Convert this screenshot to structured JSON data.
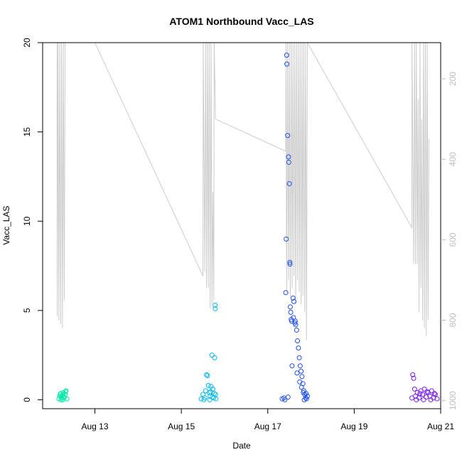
{
  "chart_data": {
    "type": "scatter",
    "title": "ATOM1 Northbound Vacc_LAS",
    "xlabel": "Date",
    "ylabel": "Vacc_LAS",
    "xlim": [
      "2019-08-11T19:00",
      "2019-08-21T00:00"
    ],
    "ylim": [
      -0.5,
      20
    ],
    "x_ticks": [
      {
        "label": "Aug 13",
        "date": "2019-08-13T00:00"
      },
      {
        "label": "Aug 15",
        "date": "2019-08-15T00:00"
      },
      {
        "label": "Aug 17",
        "date": "2019-08-17T00:00"
      },
      {
        "label": "Aug 19",
        "date": "2019-08-19T00:00"
      },
      {
        "label": "Aug 21",
        "date": "2019-08-21T00:00"
      }
    ],
    "y_ticks": [
      0,
      5,
      10,
      15,
      20
    ],
    "y2_axis": {
      "ticks": [
        200,
        400,
        600,
        800,
        1000
      ],
      "lim": [
        1020,
        110
      ],
      "color": "#bdbdbd"
    },
    "grid": false,
    "point_series": [
      {
        "color": "#00e8a8",
        "points": [
          [
            "2019-08-12T04:00",
            0.05
          ],
          [
            "2019-08-12T04:30",
            0.2
          ],
          [
            "2019-08-12T05:00",
            0.35
          ],
          [
            "2019-08-12T05:30",
            0.1
          ],
          [
            "2019-08-12T06:00",
            0.25
          ],
          [
            "2019-08-12T06:30",
            0.4
          ],
          [
            "2019-08-12T07:00",
            0.15
          ],
          [
            "2019-08-12T07:30",
            0.3
          ],
          [
            "2019-08-12T08:00",
            0.5
          ],
          [
            "2019-08-12T08:30",
            0.05
          ],
          [
            "2019-08-12T05:15",
            0.0
          ],
          [
            "2019-08-12T06:45",
            0.1
          ],
          [
            "2019-08-12T07:45",
            0.45
          ],
          [
            "2019-08-12T04:45",
            0.3
          ],
          [
            "2019-08-12T06:15",
            0.0
          ]
        ]
      },
      {
        "color": "#00b8f0",
        "points": [
          [
            "2019-08-15T11:00",
            0.05
          ],
          [
            "2019-08-15T12:00",
            0.3
          ],
          [
            "2019-08-15T13:00",
            0.1
          ],
          [
            "2019-08-15T14:00",
            1.4
          ],
          [
            "2019-08-15T14:30",
            1.35
          ],
          [
            "2019-08-15T15:00",
            0.8
          ],
          [
            "2019-08-15T15:30",
            0.4
          ],
          [
            "2019-08-15T16:00",
            0.2
          ],
          [
            "2019-08-15T16:30",
            0.75
          ],
          [
            "2019-08-15T17:00",
            2.5
          ],
          [
            "2019-08-15T17:30",
            0.6
          ],
          [
            "2019-08-15T18:00",
            0.1
          ],
          [
            "2019-08-15T18:30",
            2.35
          ],
          [
            "2019-08-15T18:45",
            5.3
          ],
          [
            "2019-08-15T18:50",
            5.1
          ],
          [
            "2019-08-15T19:00",
            0.3
          ],
          [
            "2019-08-15T19:15",
            0.05
          ],
          [
            "2019-08-15T13:30",
            0.5
          ],
          [
            "2019-08-15T15:45",
            0.0
          ],
          [
            "2019-08-15T16:15",
            0.45
          ],
          [
            "2019-08-15T17:15",
            0.15
          ],
          [
            "2019-08-15T12:30",
            0.0
          ],
          [
            "2019-08-15T18:15",
            0.35
          ]
        ]
      },
      {
        "color": "#1f4ff0",
        "points": [
          [
            "2019-08-17T08:00",
            0.05
          ],
          [
            "2019-08-17T09:00",
            0.1
          ],
          [
            "2019-08-17T10:00",
            6.0
          ],
          [
            "2019-08-17T10:15",
            9.0
          ],
          [
            "2019-08-17T10:30",
            19.3
          ],
          [
            "2019-08-17T10:35",
            18.8
          ],
          [
            "2019-08-17T11:00",
            14.8
          ],
          [
            "2019-08-17T11:30",
            13.6
          ],
          [
            "2019-08-17T11:40",
            13.3
          ],
          [
            "2019-08-17T12:00",
            12.1
          ],
          [
            "2019-08-17T12:15",
            7.7
          ],
          [
            "2019-08-17T12:20",
            7.6
          ],
          [
            "2019-08-17T12:30",
            5.2
          ],
          [
            "2019-08-17T12:45",
            4.9
          ],
          [
            "2019-08-17T13:00",
            4.5
          ],
          [
            "2019-08-17T13:15",
            4.4
          ],
          [
            "2019-08-17T14:00",
            5.7
          ],
          [
            "2019-08-17T14:30",
            5.5
          ],
          [
            "2019-08-17T15:00",
            4.3
          ],
          [
            "2019-08-17T15:30",
            4.2
          ],
          [
            "2019-08-17T16:00",
            3.9
          ],
          [
            "2019-08-17T16:30",
            3.3
          ],
          [
            "2019-08-17T17:00",
            2.9
          ],
          [
            "2019-08-17T17:30",
            2.35
          ],
          [
            "2019-08-17T18:00",
            1.9
          ],
          [
            "2019-08-17T18:30",
            1.6
          ],
          [
            "2019-08-17T19:00",
            1.3
          ],
          [
            "2019-08-17T19:30",
            0.9
          ],
          [
            "2019-08-17T20:00",
            0.5
          ],
          [
            "2019-08-17T20:30",
            0.3
          ],
          [
            "2019-08-17T21:00",
            0.1
          ],
          [
            "2019-08-17T21:30",
            0.05
          ],
          [
            "2019-08-17T22:00",
            0.2
          ],
          [
            "2019-08-17T14:15",
            4.6
          ],
          [
            "2019-08-17T15:15",
            4.4
          ],
          [
            "2019-08-17T16:15",
            1.5
          ],
          [
            "2019-08-17T17:45",
            1.0
          ],
          [
            "2019-08-17T18:45",
            0.7
          ],
          [
            "2019-08-17T19:45",
            0.4
          ],
          [
            "2019-08-17T13:30",
            1.9
          ],
          [
            "2019-08-17T09:30",
            0.0
          ],
          [
            "2019-08-17T11:15",
            0.15
          ],
          [
            "2019-08-17T20:15",
            0.0
          ],
          [
            "2019-08-17T21:15",
            0.35
          ]
        ]
      },
      {
        "color": "#7a1af0",
        "points": [
          [
            "2019-08-20T08:00",
            0.1
          ],
          [
            "2019-08-20T08:30",
            1.4
          ],
          [
            "2019-08-20T09:00",
            1.2
          ],
          [
            "2019-08-20T09:30",
            0.6
          ],
          [
            "2019-08-20T10:00",
            0.2
          ],
          [
            "2019-08-20T11:00",
            0.4
          ],
          [
            "2019-08-20T12:00",
            0.1
          ],
          [
            "2019-08-20T13:00",
            0.5
          ],
          [
            "2019-08-20T14:00",
            0.3
          ],
          [
            "2019-08-20T15:00",
            0.6
          ],
          [
            "2019-08-20T16:00",
            0.15
          ],
          [
            "2019-08-20T17:00",
            0.4
          ],
          [
            "2019-08-20T18:00",
            0.2
          ],
          [
            "2019-08-20T19:00",
            0.5
          ],
          [
            "2019-08-20T20:00",
            0.1
          ],
          [
            "2019-08-20T21:00",
            0.3
          ],
          [
            "2019-08-20T22:00",
            0.05
          ],
          [
            "2019-08-20T10:30",
            0.0
          ],
          [
            "2019-08-20T12:30",
            0.35
          ],
          [
            "2019-08-20T14:30",
            0.0
          ],
          [
            "2019-08-20T16:30",
            0.45
          ],
          [
            "2019-08-20T18:30",
            0.0
          ],
          [
            "2019-08-20T20:30",
            0.35
          ]
        ]
      }
    ],
    "line_series": {
      "axis": "y2",
      "color": "#cccccc",
      "points": [
        [
          "2019-08-12T03:00",
          110
        ],
        [
          "2019-08-12T03:05",
          790
        ],
        [
          "2019-08-12T03:30",
          110
        ],
        [
          "2019-08-12T04:00",
          800
        ],
        [
          "2019-08-12T04:30",
          110
        ],
        [
          "2019-08-12T05:00",
          810
        ],
        [
          "2019-08-12T05:30",
          110
        ],
        [
          "2019-08-12T06:00",
          820
        ],
        [
          "2019-08-12T06:30",
          110
        ],
        [
          "2019-08-12T07:00",
          750
        ],
        [
          "2019-08-12T07:30",
          110
        ],
        [
          "2019-08-12T08:00",
          110
        ],
        [
          "2019-08-13T00:00",
          110
        ],
        [
          "2019-08-15T12:00",
          690
        ],
        [
          "2019-08-15T12:10",
          110
        ],
        [
          "2019-08-15T13:00",
          680
        ],
        [
          "2019-08-15T13:30",
          110
        ],
        [
          "2019-08-15T14:00",
          720
        ],
        [
          "2019-08-15T14:30",
          110
        ],
        [
          "2019-08-15T15:00",
          720
        ],
        [
          "2019-08-15T15:30",
          110
        ],
        [
          "2019-08-15T16:00",
          770
        ],
        [
          "2019-08-15T16:30",
          110
        ],
        [
          "2019-08-15T17:00",
          760
        ],
        [
          "2019-08-15T17:30",
          480
        ],
        [
          "2019-08-15T18:00",
          750
        ],
        [
          "2019-08-15T18:15",
          110
        ],
        [
          "2019-08-15T19:00",
          300
        ],
        [
          "2019-08-17T10:00",
          380
        ],
        [
          "2019-08-17T10:05",
          110
        ],
        [
          "2019-08-17T10:30",
          730
        ],
        [
          "2019-08-17T11:00",
          110
        ],
        [
          "2019-08-17T11:30",
          700
        ],
        [
          "2019-08-17T12:00",
          110
        ],
        [
          "2019-08-17T12:30",
          740
        ],
        [
          "2019-08-17T13:00",
          110
        ],
        [
          "2019-08-17T13:30",
          720
        ],
        [
          "2019-08-17T14:00",
          110
        ],
        [
          "2019-08-17T14:30",
          690
        ],
        [
          "2019-08-17T15:00",
          110
        ],
        [
          "2019-08-17T15:30",
          760
        ],
        [
          "2019-08-17T16:00",
          110
        ],
        [
          "2019-08-17T16:30",
          700
        ],
        [
          "2019-08-17T17:00",
          110
        ],
        [
          "2019-08-17T17:30",
          730
        ],
        [
          "2019-08-17T18:00",
          110
        ],
        [
          "2019-08-17T18:30",
          760
        ],
        [
          "2019-08-17T19:00",
          110
        ],
        [
          "2019-08-17T19:30",
          740
        ],
        [
          "2019-08-17T20:00",
          110
        ],
        [
          "2019-08-17T20:30",
          780
        ],
        [
          "2019-08-17T21:00",
          110
        ],
        [
          "2019-08-17T21:30",
          850
        ],
        [
          "2019-08-17T22:00",
          110
        ],
        [
          "2019-08-20T08:00",
          570
        ],
        [
          "2019-08-20T08:05",
          110
        ],
        [
          "2019-08-20T09:00",
          660
        ],
        [
          "2019-08-20T09:30",
          110
        ],
        [
          "2019-08-20T10:00",
          660
        ],
        [
          "2019-08-20T10:30",
          110
        ],
        [
          "2019-08-20T11:00",
          660
        ],
        [
          "2019-08-20T11:30",
          250
        ],
        [
          "2019-08-20T12:00",
          780
        ],
        [
          "2019-08-20T12:30",
          110
        ],
        [
          "2019-08-20T13:00",
          720
        ],
        [
          "2019-08-20T13:30",
          300
        ],
        [
          "2019-08-20T14:00",
          800
        ],
        [
          "2019-08-20T14:30",
          110
        ],
        [
          "2019-08-20T15:00",
          820
        ],
        [
          "2019-08-20T15:30",
          110
        ],
        [
          "2019-08-20T16:00",
          840
        ],
        [
          "2019-08-20T16:30",
          110
        ],
        [
          "2019-08-20T17:00",
          800
        ],
        [
          "2019-08-20T17:30",
          350
        ]
      ]
    }
  }
}
